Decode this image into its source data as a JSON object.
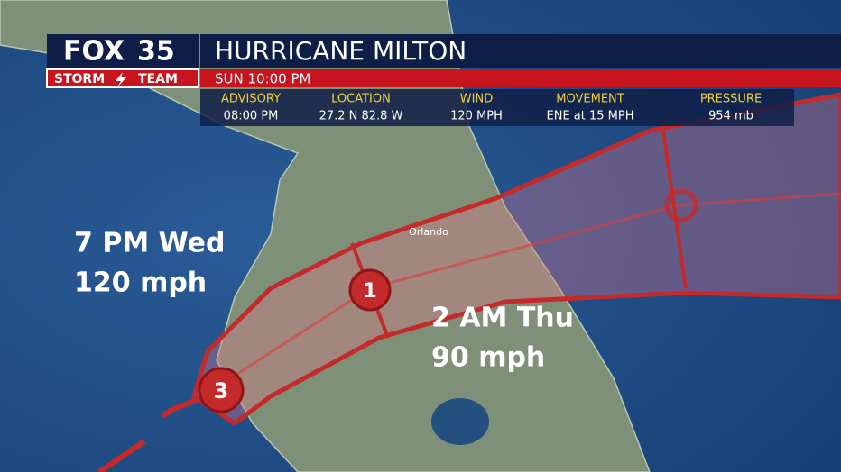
{
  "header": {
    "logo": {
      "brand": "FOX",
      "channel": "35",
      "team_left": "STORM",
      "team_right": "TEAM"
    },
    "title": "HURRICANE MILTON",
    "time": "SUN 10:00 PM"
  },
  "advisory": {
    "columns": [
      {
        "label": "ADVISORY",
        "value": "08:00 PM"
      },
      {
        "label": "LOCATION",
        "value": "27.2 N 82.8 W"
      },
      {
        "label": "WIND",
        "value": "120 MPH"
      },
      {
        "label": "MOVEMENT",
        "value": "ENE at 15 MPH"
      },
      {
        "label": "PRESSURE",
        "value": "954 mb"
      }
    ]
  },
  "map": {
    "city": "Orlando",
    "points": [
      {
        "category": "3"
      },
      {
        "category": "1"
      }
    ],
    "labels": [
      {
        "time": "7 PM Wed",
        "wind": "120 mph"
      },
      {
        "time": "2 AM Thu",
        "wind": "90 mph"
      }
    ]
  }
}
